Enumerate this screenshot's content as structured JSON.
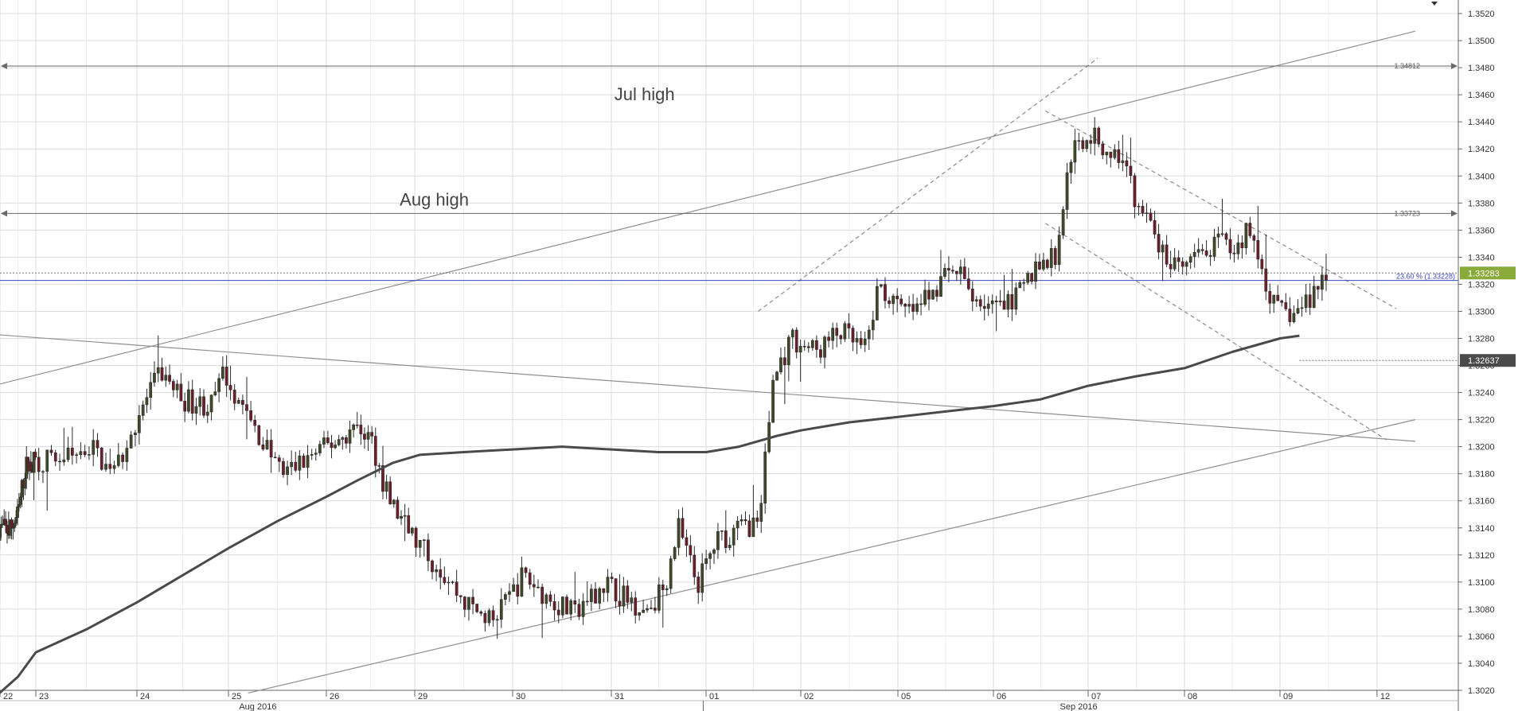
{
  "chart_data": {
    "type": "candlestick",
    "ylim": [
      1.302,
      1.353
    ],
    "grid": true,
    "y_ticks": [
      "1.3020",
      "1.3040",
      "1.3060",
      "1.3080",
      "1.3100",
      "1.3120",
      "1.3140",
      "1.3160",
      "1.3180",
      "1.3200",
      "1.3220",
      "1.3240",
      "1.3260",
      "1.3280",
      "1.3300",
      "1.3320",
      "1.3340",
      "1.3360",
      "1.3380",
      "1.3400",
      "1.3420",
      "1.3440",
      "1.3460",
      "1.3480",
      "1.3500",
      "1.3520"
    ],
    "days": [
      {
        "label": "22",
        "x": 0
      },
      {
        "label": "23",
        "x": 1
      },
      {
        "label": "24",
        "x": 2
      },
      {
        "label": "25",
        "x": 3
      },
      {
        "label": "26",
        "x": 4
      },
      {
        "label": "29",
        "x": 5
      },
      {
        "label": "30",
        "x": 6
      },
      {
        "label": "31",
        "x": 7
      },
      {
        "label": "01",
        "x": 8
      },
      {
        "label": "02",
        "x": 9
      },
      {
        "label": "05",
        "x": 10
      },
      {
        "label": "06",
        "x": 11
      },
      {
        "label": "07",
        "x": 12
      },
      {
        "label": "08",
        "x": 13
      },
      {
        "label": "09",
        "x": 14
      },
      {
        "label": "12",
        "x": 15
      }
    ],
    "months": [
      {
        "label": "Aug 2016",
        "x": 3.3
      },
      {
        "label": "Sep 2016",
        "x": 11.9
      }
    ],
    "anchors": [
      [
        -0.05,
        1.314
      ],
      [
        0.3,
        1.3138
      ],
      [
        0.55,
        1.315
      ],
      [
        0.75,
        1.3185
      ],
      [
        1.1,
        1.319
      ],
      [
        1.35,
        1.3192
      ],
      [
        1.6,
        1.32
      ],
      [
        1.8,
        1.3178
      ],
      [
        2.05,
        1.3222
      ],
      [
        2.3,
        1.3255
      ],
      [
        2.55,
        1.3235
      ],
      [
        2.85,
        1.323
      ],
      [
        3.0,
        1.3255
      ],
      [
        3.25,
        1.322
      ],
      [
        3.6,
        1.318
      ],
      [
        4.0,
        1.3198
      ],
      [
        4.4,
        1.3215
      ],
      [
        4.55,
        1.3205
      ],
      [
        4.75,
        1.316
      ],
      [
        5.05,
        1.313
      ],
      [
        5.3,
        1.311
      ],
      [
        5.55,
        1.3085
      ],
      [
        5.85,
        1.307
      ],
      [
        6.15,
        1.3105
      ],
      [
        6.45,
        1.3085
      ],
      [
        6.7,
        1.3075
      ],
      [
        6.95,
        1.31
      ],
      [
        7.15,
        1.309
      ],
      [
        7.4,
        1.308
      ],
      [
        7.6,
        1.3095
      ],
      [
        7.75,
        1.314
      ],
      [
        7.95,
        1.3098
      ],
      [
        8.15,
        1.313
      ],
      [
        8.4,
        1.314
      ],
      [
        8.6,
        1.3145
      ],
      [
        8.75,
        1.325
      ],
      [
        8.95,
        1.328
      ],
      [
        9.2,
        1.327
      ],
      [
        9.45,
        1.3285
      ],
      [
        9.7,
        1.327
      ],
      [
        9.85,
        1.332
      ],
      [
        10.05,
        1.33
      ],
      [
        10.25,
        1.33
      ],
      [
        10.45,
        1.332
      ],
      [
        10.65,
        1.333
      ],
      [
        10.85,
        1.331
      ],
      [
        11.1,
        1.33
      ],
      [
        11.3,
        1.331
      ],
      [
        11.5,
        1.3335
      ],
      [
        11.7,
        1.334
      ],
      [
        11.85,
        1.3415
      ],
      [
        12.05,
        1.3432
      ],
      [
        12.2,
        1.342
      ],
      [
        12.35,
        1.3415
      ],
      [
        12.55,
        1.338
      ],
      [
        12.7,
        1.336
      ],
      [
        12.85,
        1.3335
      ],
      [
        13.0,
        1.333
      ],
      [
        13.2,
        1.334
      ],
      [
        13.4,
        1.335
      ],
      [
        13.55,
        1.3345
      ],
      [
        13.7,
        1.336
      ],
      [
        13.85,
        1.333
      ],
      [
        14.0,
        1.33
      ],
      [
        14.2,
        1.3298
      ],
      [
        14.35,
        1.331
      ],
      [
        14.5,
        1.3328
      ]
    ],
    "ma_series": [
      [
        -0.1,
        1.3016
      ],
      [
        0.5,
        1.303
      ],
      [
        1.0,
        1.3048
      ],
      [
        1.5,
        1.3065
      ],
      [
        2.0,
        1.3085
      ],
      [
        2.5,
        1.3105
      ],
      [
        3.0,
        1.3125
      ],
      [
        3.5,
        1.3145
      ],
      [
        4.0,
        1.3163
      ],
      [
        4.35,
        1.3175
      ],
      [
        4.75,
        1.3188
      ],
      [
        5.05,
        1.3194
      ],
      [
        5.5,
        1.3196
      ],
      [
        6.0,
        1.3198
      ],
      [
        6.5,
        1.32
      ],
      [
        7.0,
        1.3198
      ],
      [
        7.5,
        1.3196
      ],
      [
        8.0,
        1.3196
      ],
      [
        8.35,
        1.32
      ],
      [
        8.75,
        1.3208
      ],
      [
        9.0,
        1.3212
      ],
      [
        9.5,
        1.3218
      ],
      [
        10.0,
        1.3222
      ],
      [
        10.5,
        1.3226
      ],
      [
        11.0,
        1.323
      ],
      [
        11.5,
        1.3235
      ],
      [
        12.0,
        1.3245
      ],
      [
        12.5,
        1.3252
      ],
      [
        13.0,
        1.3258
      ],
      [
        13.5,
        1.327
      ],
      [
        14.0,
        1.328
      ],
      [
        14.2,
        1.3282
      ]
    ],
    "horizontal_levels": [
      {
        "name": "Jul high",
        "value": 1.34812,
        "label": "1.34812"
      },
      {
        "name": "Aug high",
        "value": 1.33723,
        "label": "1.33723"
      }
    ],
    "fib_level": {
      "value": 1.33228,
      "label": "23.60 % (1.33228)"
    },
    "current_price": {
      "value": "1.33283",
      "color": "#8aab3a"
    },
    "ma_value": {
      "value": "1.32637",
      "color": "#4a4a4a"
    },
    "annotations": [
      {
        "text": "Jul high",
        "x": 7.35,
        "y": 1.3456
      },
      {
        "text": "Aug high",
        "x": 5.2,
        "y": 1.3378
      }
    ],
    "trendlines": [
      {
        "style": "solid",
        "from": [
          -0.2,
          1.3245
        ],
        "to": [
          15.4,
          1.3507
        ]
      },
      {
        "style": "solid",
        "from": [
          -0.2,
          1.3283
        ],
        "to": [
          15.4,
          1.3204
        ]
      },
      {
        "style": "solid",
        "from": [
          3.2,
          1.3018
        ],
        "to": [
          15.4,
          1.322
        ]
      },
      {
        "style": "dashed",
        "from": [
          8.55,
          1.33
        ],
        "to": [
          12.1,
          1.3487
        ]
      },
      {
        "style": "dashed",
        "from": [
          11.55,
          1.3448
        ],
        "to": [
          15.2,
          1.3302
        ]
      },
      {
        "style": "dashed",
        "from": [
          11.55,
          1.3365
        ],
        "to": [
          15.1,
          1.3205
        ]
      }
    ],
    "colors": {
      "bull": "#3f4a2a",
      "bear": "#6b1f2a",
      "grid": "#dcdcdc",
      "axis": "#666666",
      "ma": "#4a4a4a",
      "fib": "#3b45c4"
    }
  }
}
